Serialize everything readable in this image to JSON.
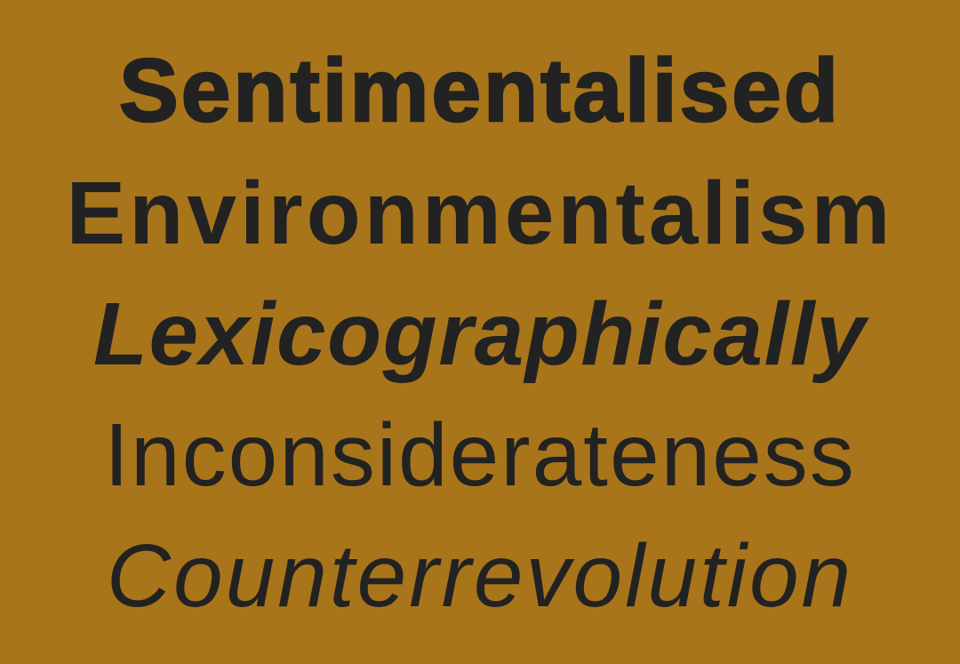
{
  "colors": {
    "background": "#a8751b",
    "text": "#222222"
  },
  "words": [
    {
      "text": "Sentimentalised",
      "style": "black"
    },
    {
      "text": "Environmentalism",
      "style": "bold"
    },
    {
      "text": "Lexicographically",
      "style": "bold-italic"
    },
    {
      "text": "Inconsiderateness",
      "style": "regular"
    },
    {
      "text": "Counterrevolution",
      "style": "italic"
    }
  ]
}
